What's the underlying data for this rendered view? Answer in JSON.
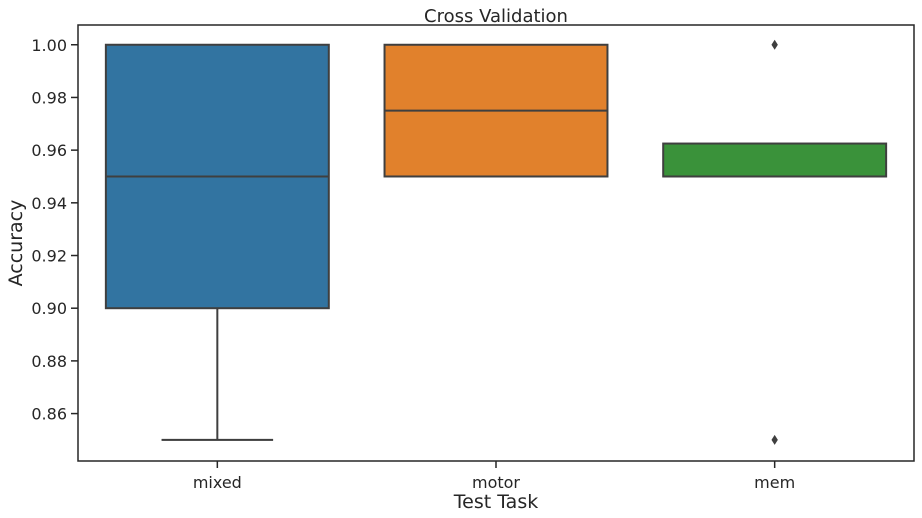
{
  "chart_data": {
    "type": "box",
    "title": "Cross Validation",
    "xlabel": "Test Task",
    "ylabel": "Accuracy",
    "ylim": [
      0.842,
      1.0075
    ],
    "yticks": [
      0.86,
      0.88,
      0.9,
      0.92,
      0.94,
      0.96,
      0.98,
      1.0
    ],
    "ytick_labels": [
      "0.86",
      "0.88",
      "0.90",
      "0.92",
      "0.94",
      "0.96",
      "0.98",
      "1.00"
    ],
    "grid": false,
    "categories": [
      "mixed",
      "motor",
      "mem"
    ],
    "boxes": [
      {
        "category": "mixed",
        "q1": 0.9,
        "median": 0.95,
        "q3": 1.0,
        "whisker_low": 0.85,
        "whisker_high": 1.0,
        "outliers": [],
        "color": "#3274a1"
      },
      {
        "category": "motor",
        "q1": 0.95,
        "median": 0.975,
        "q3": 1.0,
        "whisker_low": 0.95,
        "whisker_high": 1.0,
        "outliers": [],
        "color": "#e1812c"
      },
      {
        "category": "mem",
        "q1": 0.95,
        "median": 0.95,
        "q3": 0.9625,
        "whisker_low": 0.95,
        "whisker_high": 0.9625,
        "outliers": [
          0.85,
          1.0
        ],
        "color": "#3a923a"
      }
    ],
    "line_color": "#3f3f3f"
  }
}
